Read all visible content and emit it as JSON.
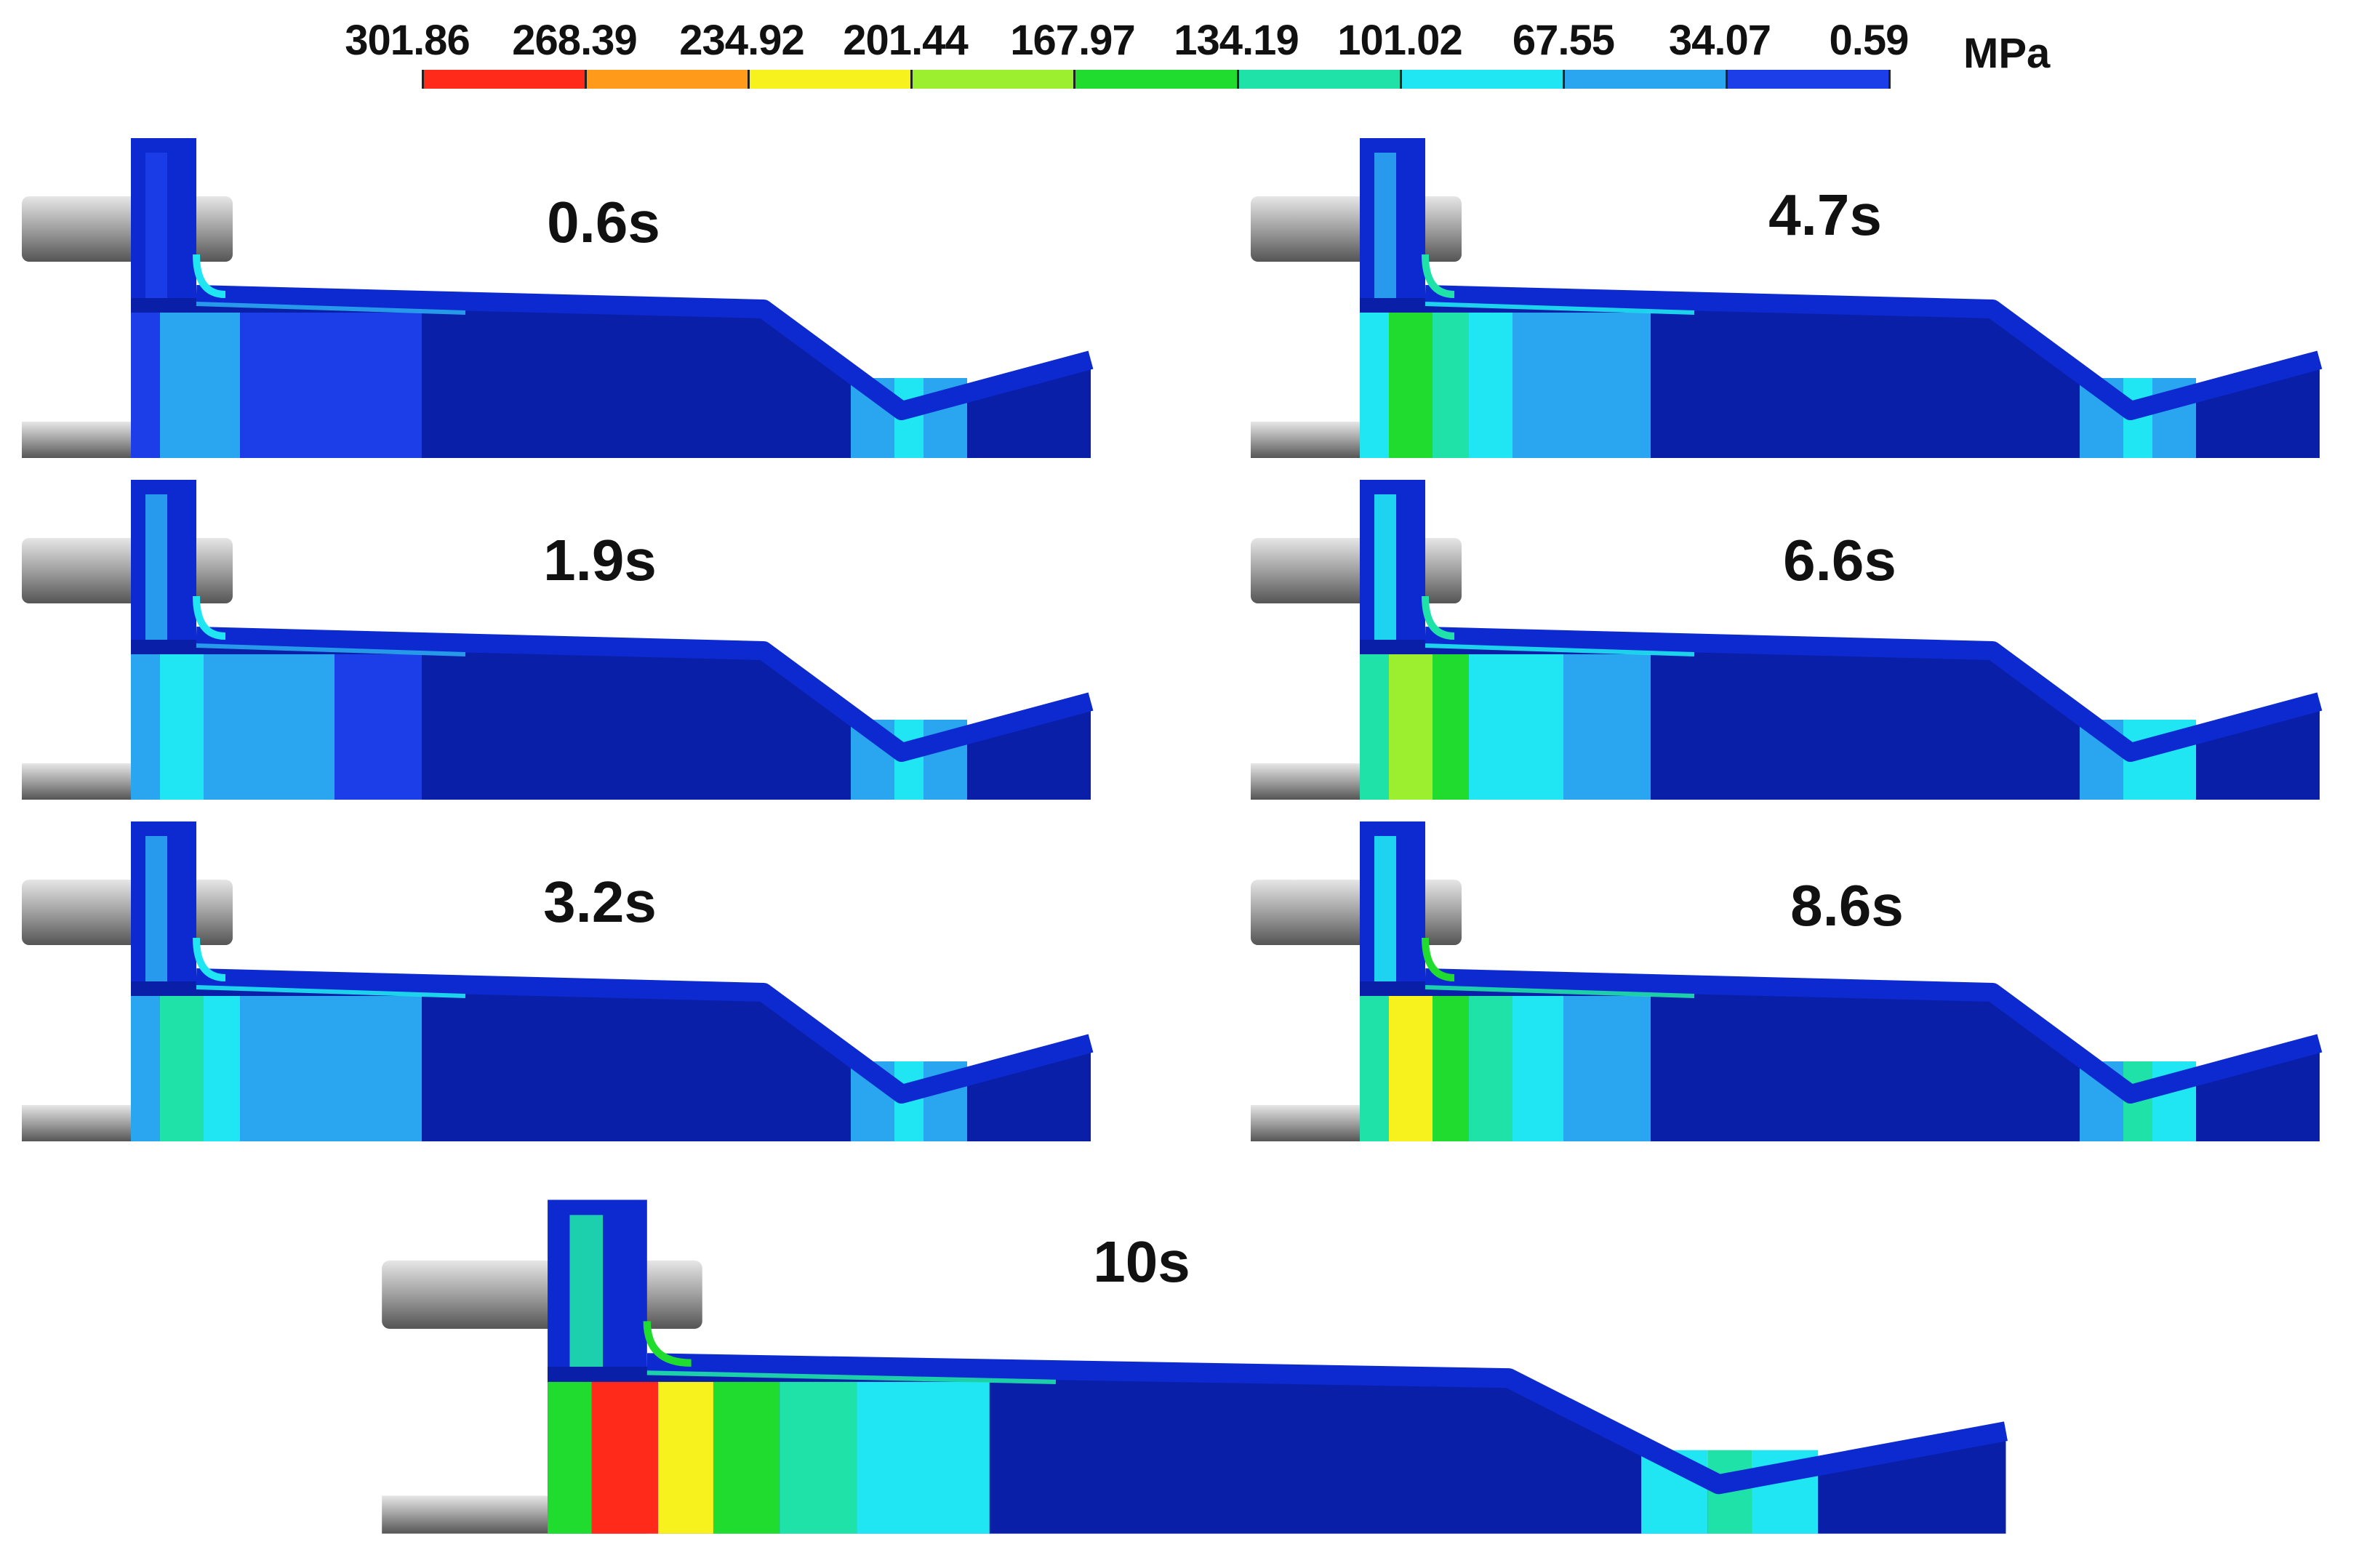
{
  "legend": {
    "values": [
      "301.86",
      "268.39",
      "234.92",
      "201.44",
      "167.97",
      "134.19",
      "101.02",
      "67.55",
      "34.07",
      "0.59"
    ],
    "unit": "MPa",
    "colors": [
      "#ff2a1a",
      "#ff9a1a",
      "#f7f21e",
      "#9cef2e",
      "#1fdc2e",
      "#1ee2a8",
      "#1fe6f2",
      "#2aa6f0",
      "#1b3ee8"
    ]
  },
  "panels": [
    {
      "id": "p06",
      "time": "0.6s",
      "hot": 0.1
    },
    {
      "id": "p47",
      "time": "4.7s",
      "hot": 0.45
    },
    {
      "id": "p19",
      "time": "1.9s",
      "hot": 0.22
    },
    {
      "id": "p66",
      "time": "6.6s",
      "hot": 0.6
    },
    {
      "id": "p32",
      "time": "3.2s",
      "hot": 0.32
    },
    {
      "id": "p86",
      "time": "8.6s",
      "hot": 0.75
    },
    {
      "id": "p10",
      "time": "10s",
      "hot": 1.0
    }
  ]
}
